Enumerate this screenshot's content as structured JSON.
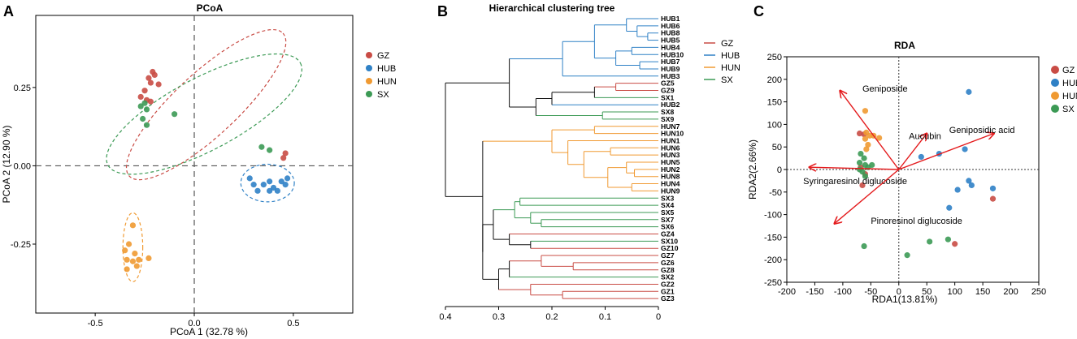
{
  "colors": {
    "GZ": "#c94c45",
    "HUB": "#2f81c6",
    "HUN": "#f09a32",
    "SX": "#3c9a55"
  },
  "groups": [
    "GZ",
    "HUB",
    "HUN",
    "SX"
  ],
  "panels": {
    "A": {
      "label": "A"
    },
    "B": {
      "label": "B"
    },
    "C": {
      "label": "C"
    }
  },
  "chart_data": [
    {
      "type": "scatter",
      "title": "PCoA",
      "xlabel": "PCoA 1 (32.78 %)",
      "ylabel": "PCoA 2 (12.90 %)",
      "xlim": [
        -0.8,
        0.8
      ],
      "ylim": [
        -0.47,
        0.48
      ],
      "xticks": [
        -0.5,
        0.0,
        0.5
      ],
      "xtick_labels": [
        "-0.5",
        "0.0",
        "0.5"
      ],
      "yticks": [
        -0.25,
        0.0,
        0.25
      ],
      "ytick_labels": [
        "-0.25",
        "0.00",
        "0.25"
      ],
      "legend": [
        "GZ",
        "HUB",
        "HUN",
        "SX"
      ],
      "series": [
        {
          "name": "GZ",
          "points": [
            [
              -0.21,
              0.3
            ],
            [
              -0.2,
              0.29
            ],
            [
              -0.23,
              0.28
            ],
            [
              -0.22,
              0.265
            ],
            [
              -0.18,
              0.26
            ],
            [
              -0.25,
              0.24
            ],
            [
              -0.24,
              0.21
            ],
            [
              -0.27,
              0.22
            ],
            [
              -0.22,
              0.205
            ],
            [
              0.45,
              0.025
            ],
            [
              0.46,
              0.04
            ]
          ]
        },
        {
          "name": "HUB",
          "points": [
            [
              0.28,
              -0.04
            ],
            [
              0.3,
              -0.06
            ],
            [
              0.32,
              -0.08
            ],
            [
              0.35,
              -0.06
            ],
            [
              0.38,
              -0.05
            ],
            [
              0.4,
              -0.07
            ],
            [
              0.42,
              -0.08
            ],
            [
              0.44,
              -0.05
            ],
            [
              0.46,
              -0.06
            ],
            [
              0.47,
              -0.04
            ],
            [
              0.38,
              -0.08
            ]
          ]
        },
        {
          "name": "HUN",
          "points": [
            [
              -0.31,
              -0.19
            ],
            [
              -0.33,
              -0.25
            ],
            [
              -0.35,
              -0.27
            ],
            [
              -0.3,
              -0.28
            ],
            [
              -0.34,
              -0.3
            ],
            [
              -0.31,
              -0.305
            ],
            [
              -0.28,
              -0.3
            ],
            [
              -0.23,
              -0.295
            ],
            [
              -0.29,
              -0.32
            ],
            [
              -0.34,
              -0.33
            ]
          ]
        },
        {
          "name": "SX",
          "points": [
            [
              -0.27,
              0.19
            ],
            [
              -0.26,
              0.15
            ],
            [
              -0.24,
              0.18
            ],
            [
              -0.25,
              0.2
            ],
            [
              -0.1,
              0.165
            ],
            [
              0.38,
              0.05
            ],
            [
              0.34,
              0.06
            ],
            [
              -0.24,
              0.13
            ]
          ]
        }
      ],
      "ellipses": [
        {
          "group": "GZ",
          "cx": 0.06,
          "cy": 0.195,
          "rx": 0.53,
          "ry": 0.1,
          "angle_deg": -43
        },
        {
          "group": "SX",
          "cx": 0.05,
          "cy": 0.165,
          "rx": 0.55,
          "ry": 0.115,
          "angle_deg": -28
        },
        {
          "group": "HUB",
          "cx": 0.37,
          "cy": -0.055,
          "rx": 0.135,
          "ry": 0.06,
          "angle_deg": 0
        },
        {
          "group": "HUN",
          "cx": -0.31,
          "cy": -0.26,
          "rx": 0.05,
          "ry": 0.11,
          "angle_deg": 0
        }
      ]
    },
    {
      "type": "dendrogram",
      "title": "Hierarchical clustering tree",
      "xticks": [
        0.4,
        0.3,
        0.2,
        0.1,
        0
      ],
      "xtick_labels": [
        "0.4",
        "0.3",
        "0.2",
        "0.1",
        "0"
      ],
      "legend": [
        "GZ",
        "HUB",
        "HUN",
        "SX"
      ],
      "leaves": [
        "HUB1",
        "HUB6",
        "HUB8",
        "HUB5",
        "HUB4",
        "HUB10",
        "HUB7",
        "HUB9",
        "HUB3",
        "GZ5",
        "GZ9",
        "SX1",
        "HUB2",
        "SX8",
        "SX9",
        "HUN7",
        "HUN10",
        "HUN1",
        "HUN6",
        "HUN3",
        "HUN5",
        "HUN2",
        "HUN8",
        "HUN4",
        "HUN9",
        "SX3",
        "SX4",
        "SX5",
        "SX7",
        "SX6",
        "GZ4",
        "SX10",
        "GZ10",
        "GZ7",
        "GZ6",
        "GZ8",
        "SX2",
        "GZ2",
        "GZ1",
        "GZ3"
      ]
    },
    {
      "type": "scatter",
      "title": "RDA",
      "xlabel": "RDA1(13.81%)",
      "ylabel": "RDA2(2.66%)",
      "xlim": [
        -200,
        250
      ],
      "ylim": [
        -250,
        250
      ],
      "xticks": [
        -200,
        -150,
        -100,
        -50,
        0,
        50,
        100,
        150,
        200,
        250
      ],
      "xtick_labels": [
        "-200",
        "-150",
        "-100",
        "-50",
        "0",
        "50",
        "100",
        "150",
        "200",
        "250"
      ],
      "yticks": [
        250,
        200,
        150,
        100,
        50,
        0,
        -50,
        -100,
        -150,
        -200,
        -250
      ],
      "ytick_labels": [
        "250",
        "200",
        "150",
        "100",
        "50",
        "0",
        "-50",
        "-100",
        "-150",
        "-200",
        "-250"
      ],
      "legend": [
        "GZ",
        "HUB",
        "HUN",
        "SX"
      ],
      "series": [
        {
          "name": "GZ",
          "points": [
            [
              -70,
              80
            ],
            [
              -62,
              78
            ],
            [
              -60,
              -10
            ],
            [
              -65,
              -35
            ],
            [
              100,
              -165
            ],
            [
              168,
              -65
            ],
            [
              -68,
              5
            ]
          ]
        },
        {
          "name": "HUB",
          "points": [
            [
              125,
              172
            ],
            [
              40,
              28
            ],
            [
              72,
              35
            ],
            [
              118,
              45
            ],
            [
              125,
              -25
            ],
            [
              130,
              -35
            ],
            [
              105,
              -45
            ],
            [
              90,
              -85
            ],
            [
              168,
              -42
            ]
          ]
        },
        {
          "name": "HUN",
          "points": [
            [
              -60,
              130
            ],
            [
              -58,
              82
            ],
            [
              -52,
              75
            ],
            [
              -45,
              75
            ],
            [
              -60,
              68
            ],
            [
              -55,
              55
            ],
            [
              -58,
              45
            ],
            [
              -35,
              70
            ]
          ]
        },
        {
          "name": "SX",
          "points": [
            [
              -68,
              35
            ],
            [
              -62,
              25
            ],
            [
              -70,
              15
            ],
            [
              -60,
              10
            ],
            [
              -55,
              5
            ],
            [
              -70,
              0
            ],
            [
              -65,
              -5
            ],
            [
              -60,
              -15
            ],
            [
              -48,
              10
            ],
            [
              -62,
              -170
            ],
            [
              15,
              -190
            ],
            [
              55,
              -160
            ],
            [
              88,
              -155
            ]
          ]
        }
      ],
      "arrows": [
        {
          "label": "Geniposide",
          "x": -105,
          "y": 175
        },
        {
          "label": "Aucubin",
          "x": 50,
          "y": 80
        },
        {
          "label": "Geniposidic acid",
          "x": 170,
          "y": 80
        },
        {
          "label": "Syringaresinol diglucoside",
          "x": -160,
          "y": 5
        },
        {
          "label": "Pinoresinol diglucoside",
          "x": -115,
          "y": -120
        }
      ]
    }
  ]
}
